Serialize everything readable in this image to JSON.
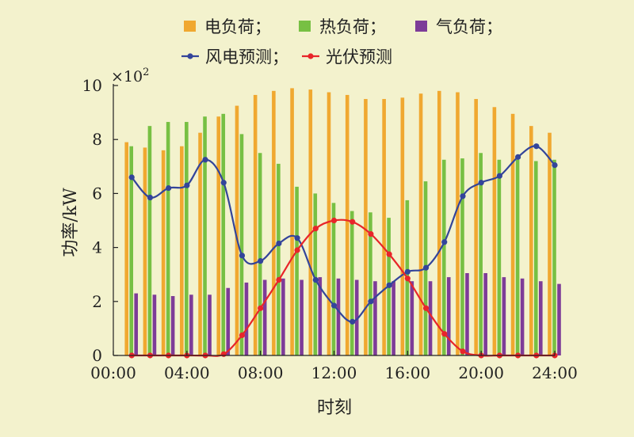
{
  "chart_data": {
    "type": "bar",
    "ylabel": "功率/kW",
    "xlabel": "时刻",
    "y_multiplier": "×10",
    "y_multiplier_exp": "2",
    "ylim": [
      0,
      10
    ],
    "yticks": [
      "0",
      "2",
      "4",
      "6",
      "8",
      "10"
    ],
    "xlim": [
      0,
      24
    ],
    "xticks": [
      {
        "x": 0,
        "label": "00:00"
      },
      {
        "x": 4,
        "label": "04:00"
      },
      {
        "x": 8,
        "label": "08:00"
      },
      {
        "x": 12,
        "label": "12:00"
      },
      {
        "x": 16,
        "label": "16:00"
      },
      {
        "x": 20,
        "label": "20:00"
      },
      {
        "x": 24,
        "label": "24:00"
      }
    ],
    "hours": [
      1,
      2,
      3,
      4,
      5,
      6,
      7,
      8,
      9,
      10,
      11,
      12,
      13,
      14,
      15,
      16,
      17,
      18,
      19,
      20,
      21,
      22,
      23,
      24
    ],
    "bar_series": [
      {
        "name": "电负荷；",
        "color": "#f0a830",
        "values": [
          7.9,
          7.7,
          7.6,
          7.75,
          8.25,
          8.85,
          9.25,
          9.65,
          9.8,
          9.9,
          9.85,
          9.75,
          9.65,
          9.5,
          9.5,
          9.55,
          9.7,
          9.8,
          9.75,
          9.5,
          9.2,
          8.95,
          8.5,
          8.25
        ]
      },
      {
        "name": "热负荷；",
        "color": "#77c043",
        "values": [
          7.75,
          8.5,
          8.65,
          8.65,
          8.85,
          8.95,
          8.2,
          7.5,
          7.1,
          6.25,
          6.0,
          5.65,
          5.35,
          5.3,
          5.1,
          5.75,
          6.45,
          7.25,
          7.3,
          7.5,
          7.25,
          7.25,
          7.2,
          7.25
        ]
      },
      {
        "name": "气负荷；",
        "color": "#7d3c98",
        "values": [
          2.3,
          2.25,
          2.2,
          2.25,
          2.25,
          2.5,
          2.7,
          2.8,
          2.85,
          2.8,
          2.9,
          2.85,
          2.8,
          2.75,
          2.75,
          2.75,
          2.75,
          2.9,
          3.05,
          3.05,
          2.9,
          2.85,
          2.75,
          2.65
        ]
      }
    ],
    "line_series": [
      {
        "name": "风电预测；",
        "color": "#33449a",
        "x": [
          1,
          2,
          3,
          4,
          5,
          6,
          7,
          8,
          9,
          10,
          11,
          12,
          13,
          14,
          15,
          16,
          17,
          18,
          19,
          20,
          21,
          22,
          23,
          24
        ],
        "values": [
          6.6,
          5.85,
          6.2,
          6.3,
          7.25,
          6.4,
          3.7,
          3.5,
          4.15,
          4.35,
          2.8,
          1.85,
          1.25,
          2.0,
          2.6,
          3.1,
          3.25,
          4.2,
          5.9,
          6.4,
          6.65,
          7.35,
          7.75,
          7.05
        ]
      },
      {
        "name": "光伏预测",
        "color": "#e8252a",
        "x": [
          1,
          2,
          3,
          4,
          5,
          6,
          7,
          8,
          9,
          10,
          11,
          12,
          13,
          14,
          15,
          16,
          17,
          18,
          19,
          20,
          21,
          22,
          23,
          24
        ],
        "values": [
          0,
          0,
          0,
          0,
          0,
          0.05,
          0.75,
          1.75,
          2.8,
          3.9,
          4.7,
          5.0,
          4.95,
          4.5,
          3.75,
          2.85,
          1.75,
          0.8,
          0.15,
          0,
          0,
          0,
          0,
          0
        ]
      }
    ]
  }
}
